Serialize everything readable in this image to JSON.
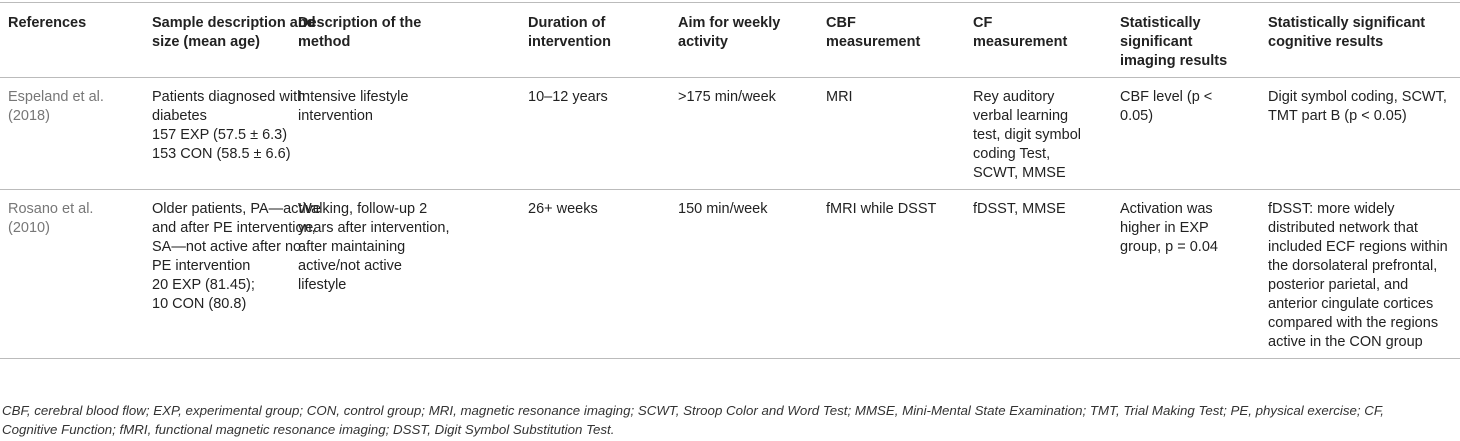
{
  "table": {
    "header": [
      [
        "References"
      ],
      [
        "Sample description and",
        "size (mean age)"
      ],
      [
        "Description of the",
        "method"
      ],
      [
        "Duration of",
        "intervention"
      ],
      [
        "Aim for weekly",
        "activity"
      ],
      [
        "CBF",
        "measurement"
      ],
      [
        "CF",
        "measurement"
      ],
      [
        "Statistically",
        "significant",
        "imaging results"
      ],
      [
        "Statistically significant",
        "cognitive results"
      ]
    ],
    "rows": [
      [
        [
          "Espeland et al.",
          "(2018)"
        ],
        [
          "Patients diagnosed with",
          "diabetes",
          "157 EXP (57.5 ± 6.3)",
          "153 CON (58.5 ± 6.6)"
        ],
        [
          "Intensive lifestyle",
          "intervention"
        ],
        [
          "10–12 years"
        ],
        [
          ">175 min/week"
        ],
        [
          "MRI"
        ],
        [
          "Rey auditory",
          "verbal learning",
          "test, digit symbol",
          "coding Test,",
          "SCWT, MMSE"
        ],
        [
          "CBF level (p <",
          "0.05)"
        ],
        [
          "Digit symbol coding, SCWT,",
          "TMT part B (p < 0.05)"
        ]
      ],
      [
        [
          "Rosano et al.",
          "(2010)"
        ],
        [
          "Older patients, PA—active",
          "and after PE intervention,",
          "SA—not active after no",
          "PE intervention",
          "20 EXP (81.45);",
          "10 CON (80.8)"
        ],
        [
          "Walking, follow-up 2",
          "years after intervention,",
          "after maintaining",
          "active/not active",
          "lifestyle"
        ],
        [
          "26+ weeks"
        ],
        [
          "150 min/week"
        ],
        [
          "fMRI while DSST"
        ],
        [
          "fDSST, MMSE"
        ],
        [
          "Activation was",
          "higher in EXP",
          "group, p = 0.04"
        ],
        [
          "fDSST: more widely",
          "distributed network that",
          "included ECF regions within",
          "the dorsolateral prefrontal,",
          "posterior parietal, and",
          "anterior cingulate cortices",
          "compared with the regions",
          "active in the CON group"
        ]
      ]
    ],
    "footnote": [
      "CBF, cerebral blood flow; EXP, experimental group; CON, control group; MRI, magnetic resonance imaging; SCWT, Stroop Color and Word Test; MMSE, Mini-Mental State Examination; TMT, Trial Making Test; PE, physical exercise; CF,",
      "Cognitive Function; fMRI, functional magnetic resonance imaging; DSST, Digit Symbol Substitution Test."
    ]
  }
}
